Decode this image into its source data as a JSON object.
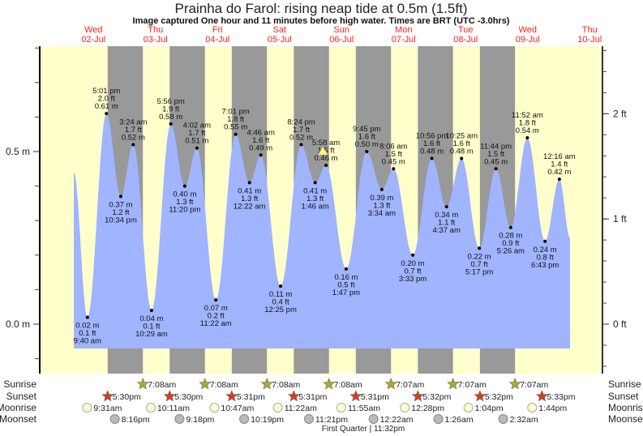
{
  "header": {
    "title": "Prainha do Farol: rising  neap tide at 0.5m (1.5ft)",
    "subtitle": "Image captured One hour and 11 minutes before high water. Times are BRT (UTC -3.0hrs)"
  },
  "colors": {
    "day": "#ffffcc",
    "night": "#999999",
    "water": "#a0b4ff",
    "day_label": "#ff2020",
    "sun_star": "#b0a828",
    "sunset_star": "#d04020",
    "moonrise": "#ffffcc",
    "moonset": "#bbbbb0",
    "marker": "#ffff66"
  },
  "days": [
    {
      "name": "Wed",
      "date": "02-Jul"
    },
    {
      "name": "Thu",
      "date": "03-Jul"
    },
    {
      "name": "Fri",
      "date": "04-Jul"
    },
    {
      "name": "Sat",
      "date": "05-Jul"
    },
    {
      "name": "Sun",
      "date": "06-Jul"
    },
    {
      "name": "Mon",
      "date": "07-Jul"
    },
    {
      "name": "Tue",
      "date": "08-Jul"
    },
    {
      "name": "Wed",
      "date": "09-Jul"
    },
    {
      "name": "Thu",
      "date": "10-Jul"
    }
  ],
  "chart_data": {
    "type": "area",
    "title": "Prainha do Farol: rising  neap tide at 0.5m (1.5ft)",
    "x_unit": "hours since Wed 02-Jul 00:00",
    "y_unit": "m",
    "ylim_m": [
      -0.07,
      0.88
    ],
    "left_axis_ticks": [
      {
        "value": 0.5,
        "label": "0.5 m"
      },
      {
        "value": 0.0,
        "label": "0.0 m"
      }
    ],
    "right_axis_ticks": [
      {
        "value": 2,
        "label": "2 ft"
      },
      {
        "value": 1,
        "label": "1 ft"
      },
      {
        "value": 0,
        "label": "0 ft"
      }
    ],
    "curve_start": {
      "hour": 4.4,
      "m": 0.44
    },
    "curve_end": {
      "hour": 196.4,
      "m": 0.25
    },
    "extrema": [
      {
        "hour": 9.67,
        "type": "low",
        "time": "9:40 am",
        "m": 0.02,
        "m_label": "0.02 m",
        "ft_label": "0.1 ft"
      },
      {
        "hour": 17.02,
        "type": "high",
        "time": "5:01 pm",
        "m": 0.61,
        "m_label": "0.61 m",
        "ft_label": "2.0 ft"
      },
      {
        "hour": 22.57,
        "type": "low",
        "time": "10:34 pm",
        "m": 0.37,
        "m_label": "0.37 m",
        "ft_label": "1.2 ft"
      },
      {
        "hour": 27.4,
        "type": "high",
        "time": "3:24 am",
        "m": 0.52,
        "m_label": "0.52 m",
        "ft_label": "1.7 ft"
      },
      {
        "hour": 34.48,
        "type": "low",
        "time": "10:29 am",
        "m": 0.04,
        "m_label": "0.04 m",
        "ft_label": "0.1 ft"
      },
      {
        "hour": 41.93,
        "type": "high",
        "time": "5:56 pm",
        "m": 0.58,
        "m_label": "0.58 m",
        "ft_label": "1.9 ft"
      },
      {
        "hour": 47.33,
        "type": "low",
        "time": "11:20 pm",
        "m": 0.4,
        "m_label": "0.40 m",
        "ft_label": "1.3 ft"
      },
      {
        "hour": 52.03,
        "type": "high",
        "time": "4:02 am",
        "m": 0.51,
        "m_label": "0.51 m",
        "ft_label": "1.7 ft"
      },
      {
        "hour": 59.37,
        "type": "low",
        "time": "11:22 am",
        "m": 0.07,
        "m_label": "0.07 m",
        "ft_label": "0.2 ft"
      },
      {
        "hour": 67.02,
        "type": "high",
        "time": "7:01 pm",
        "m": 0.55,
        "m_label": "0.55 m",
        "ft_label": "1.8 ft"
      },
      {
        "hour": 72.37,
        "type": "low",
        "time": "12:22 am",
        "m": 0.41,
        "m_label": "0.41 m",
        "ft_label": "1.3 ft"
      },
      {
        "hour": 76.77,
        "type": "high",
        "time": "4:46 am",
        "m": 0.49,
        "m_label": "0.49 m",
        "ft_label": "1.6 ft"
      },
      {
        "hour": 84.42,
        "type": "low",
        "time": "12:25 pm",
        "m": 0.11,
        "m_label": "0.11 m",
        "ft_label": "0.4 ft"
      },
      {
        "hour": 92.4,
        "type": "high",
        "time": "8:24 pm",
        "m": 0.52,
        "m_label": "0.52 m",
        "ft_label": "1.7 ft"
      },
      {
        "hour": 97.77,
        "type": "low",
        "time": "1:46 am",
        "m": 0.41,
        "m_label": "0.41 m",
        "ft_label": "1.3 ft"
      },
      {
        "hour": 101.97,
        "type": "high",
        "time": "5:58 am",
        "m": 0.46,
        "m_label": "0.46 m",
        "ft_label": "1.5 ft"
      },
      {
        "hour": 109.78,
        "type": "low",
        "time": "1:47 pm",
        "m": 0.16,
        "m_label": "0.16 m",
        "ft_label": "0.5 ft"
      },
      {
        "hour": 117.75,
        "type": "high",
        "time": "9:45 pm",
        "m": 0.5,
        "m_label": "0.50 m",
        "ft_label": "1.6 ft"
      },
      {
        "hour": 123.57,
        "type": "low",
        "time": "3:34 am",
        "m": 0.39,
        "m_label": "0.39 m",
        "ft_label": "1.3 ft"
      },
      {
        "hour": 128.1,
        "type": "high",
        "time": "8:06 am",
        "m": 0.45,
        "m_label": "0.45 m",
        "ft_label": "1.5 ft"
      },
      {
        "hour": 135.55,
        "type": "low",
        "time": "3:33 pm",
        "m": 0.2,
        "m_label": "0.20 m",
        "ft_label": "0.7 ft"
      },
      {
        "hour": 142.93,
        "type": "high",
        "time": "10:56 pm",
        "m": 0.48,
        "m_label": "0.48 m",
        "ft_label": "1.6 ft"
      },
      {
        "hour": 148.62,
        "type": "low",
        "time": "4:37 am",
        "m": 0.34,
        "m_label": "0.34 m",
        "ft_label": "1.1 ft"
      },
      {
        "hour": 154.42,
        "type": "high",
        "time": "10:25 am",
        "m": 0.48,
        "m_label": "0.48 m",
        "ft_label": "1.6 ft"
      },
      {
        "hour": 161.28,
        "type": "low",
        "time": "5:17 pm",
        "m": 0.22,
        "m_label": "0.22 m",
        "ft_label": "0.7 ft"
      },
      {
        "hour": 167.73,
        "type": "high",
        "time": "11:44 pm",
        "m": 0.45,
        "m_label": "0.45 m",
        "ft_label": "1.5 ft"
      },
      {
        "hour": 173.43,
        "type": "low",
        "time": "5:26 am",
        "m": 0.28,
        "m_label": "0.28 m",
        "ft_label": "0.9 ft"
      },
      {
        "hour": 179.87,
        "type": "high",
        "time": "11:52 am",
        "m": 0.54,
        "m_label": "0.54 m",
        "ft_label": "1.8 ft"
      },
      {
        "hour": 186.72,
        "type": "low",
        "time": "6:43 pm",
        "m": 0.24,
        "m_label": "0.24 m",
        "ft_label": "0.8 ft"
      },
      {
        "hour": 192.27,
        "type": "high",
        "time": "12:16 am",
        "m": 0.42,
        "m_label": "0.42 m",
        "ft_label": "1.4 ft"
      }
    ],
    "current": {
      "hour": 100.78,
      "m": 0.5
    }
  },
  "astro": {
    "row_labels": {
      "sunrise": "Sunrise",
      "sunset": "Sunset",
      "moonrise": "Moonrise",
      "moonset": "Moonset"
    },
    "sunset": [
      {
        "hour": 17.5,
        "time": "5:30pm"
      },
      {
        "hour": 41.5,
        "time": "5:30pm"
      },
      {
        "hour": 65.52,
        "time": "5:31pm"
      },
      {
        "hour": 89.52,
        "time": "5:31pm"
      },
      {
        "hour": 113.52,
        "time": "5:31pm"
      },
      {
        "hour": 137.53,
        "time": "5:32pm"
      },
      {
        "hour": 161.53,
        "time": "5:32pm"
      },
      {
        "hour": 185.55,
        "time": "5:33pm"
      }
    ],
    "sunrise": [
      {
        "hour": 31.13,
        "time": "7:08am"
      },
      {
        "hour": 55.13,
        "time": "7:08am"
      },
      {
        "hour": 79.13,
        "time": "7:08am"
      },
      {
        "hour": 103.13,
        "time": "7:08am"
      },
      {
        "hour": 127.12,
        "time": "7:07am"
      },
      {
        "hour": 151.12,
        "time": "7:07am"
      },
      {
        "hour": 175.12,
        "time": "7:07am"
      }
    ],
    "moonrise": [
      {
        "hour": 9.52,
        "time": "9:31am"
      },
      {
        "hour": 34.18,
        "time": "10:11am"
      },
      {
        "hour": 58.78,
        "time": "10:47am"
      },
      {
        "hour": 83.37,
        "time": "11:22am"
      },
      {
        "hour": 107.92,
        "time": "11:55am"
      },
      {
        "hour": 132.47,
        "time": "12:28pm"
      },
      {
        "hour": 157.07,
        "time": "1:04pm"
      },
      {
        "hour": 181.73,
        "time": "1:44pm"
      }
    ],
    "moonset": [
      {
        "hour": 20.27,
        "time": "8:16pm"
      },
      {
        "hour": 45.3,
        "time": "9:18pm"
      },
      {
        "hour": 70.32,
        "time": "10:19pm"
      },
      {
        "hour": 95.35,
        "time": "11:21pm"
      },
      {
        "hour": 120.37,
        "time": "12:22am"
      },
      {
        "hour": 145.43,
        "time": "1:26am"
      },
      {
        "hour": 170.53,
        "time": "2:32am"
      }
    ],
    "moon_phase": {
      "hour": 119.53,
      "label": "First Quarter | 11:32pm"
    }
  }
}
